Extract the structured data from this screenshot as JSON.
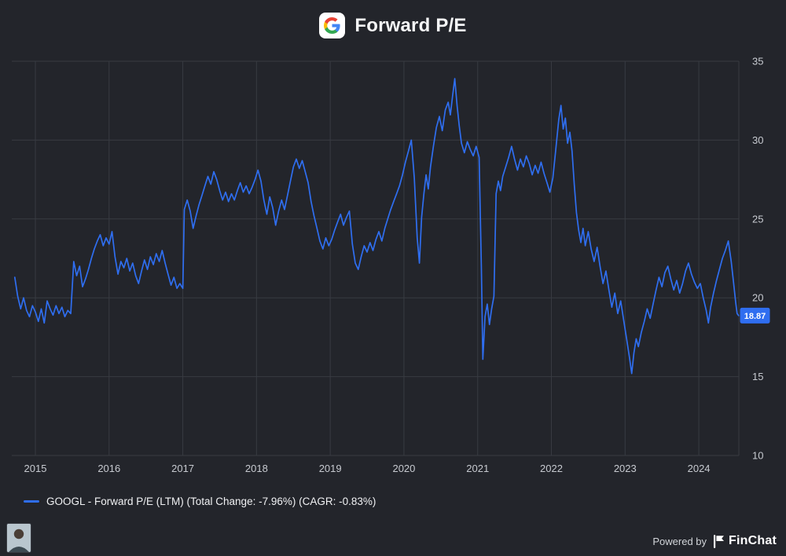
{
  "header": {
    "title": "Forward P/E",
    "logo_icon": "google-logo"
  },
  "legend": {
    "label": "GOOGL - Forward P/E (LTM) (Total Change: -7.96%) (CAGR: -0.83%)"
  },
  "footer": {
    "powered_by": "Powered by",
    "brand": "FinChat",
    "brand_icon": "finchat-flag-icon"
  },
  "chart_data": {
    "type": "line",
    "title": "Forward P/E",
    "ticker": "GOOGL",
    "metric": "Forward P/E (LTM)",
    "total_change": "-7.96%",
    "cagr": "-0.83%",
    "last_value": 18.87,
    "last_value_label": "18.87",
    "xlim": [
      2014.68,
      2024.543
    ],
    "ylim": [
      10,
      35
    ],
    "x_ticks": [
      2015,
      2016,
      2017,
      2018,
      2019,
      2020,
      2021,
      2022,
      2023,
      2024
    ],
    "y_ticks": [
      10,
      15,
      20,
      25,
      30,
      35
    ],
    "grid": true,
    "grid_color": "#383b42",
    "tick_color": "#c7cad0",
    "background_color": "#23252b",
    "legend_position": "bottom-left",
    "y_axis_side": "right",
    "series": [
      {
        "name": "GOOGL - Forward P/E (LTM)",
        "color": "#2f6ef0",
        "points": [
          [
            2014.72,
            21.3
          ],
          [
            2014.76,
            20.1
          ],
          [
            2014.8,
            19.3
          ],
          [
            2014.84,
            20.0
          ],
          [
            2014.88,
            19.2
          ],
          [
            2014.92,
            18.8
          ],
          [
            2014.96,
            19.5
          ],
          [
            2015.0,
            19.1
          ],
          [
            2015.04,
            18.5
          ],
          [
            2015.08,
            19.3
          ],
          [
            2015.12,
            18.4
          ],
          [
            2015.16,
            19.8
          ],
          [
            2015.2,
            19.3
          ],
          [
            2015.24,
            18.9
          ],
          [
            2015.28,
            19.5
          ],
          [
            2015.32,
            19.0
          ],
          [
            2015.36,
            19.4
          ],
          [
            2015.4,
            18.8
          ],
          [
            2015.44,
            19.2
          ],
          [
            2015.48,
            19.0
          ],
          [
            2015.52,
            22.3
          ],
          [
            2015.56,
            21.4
          ],
          [
            2015.6,
            22.0
          ],
          [
            2015.64,
            20.7
          ],
          [
            2015.68,
            21.2
          ],
          [
            2015.72,
            21.8
          ],
          [
            2015.76,
            22.5
          ],
          [
            2015.8,
            23.1
          ],
          [
            2015.84,
            23.6
          ],
          [
            2015.88,
            24.0
          ],
          [
            2015.92,
            23.3
          ],
          [
            2015.96,
            23.8
          ],
          [
            2016.0,
            23.4
          ],
          [
            2016.04,
            24.2
          ],
          [
            2016.08,
            22.6
          ],
          [
            2016.12,
            21.5
          ],
          [
            2016.16,
            22.3
          ],
          [
            2016.2,
            21.9
          ],
          [
            2016.24,
            22.5
          ],
          [
            2016.28,
            21.7
          ],
          [
            2016.32,
            22.2
          ],
          [
            2016.36,
            21.4
          ],
          [
            2016.4,
            20.9
          ],
          [
            2016.44,
            21.7
          ],
          [
            2016.48,
            22.4
          ],
          [
            2016.52,
            21.8
          ],
          [
            2016.56,
            22.6
          ],
          [
            2016.6,
            22.1
          ],
          [
            2016.64,
            22.8
          ],
          [
            2016.68,
            22.3
          ],
          [
            2016.72,
            23.0
          ],
          [
            2016.76,
            22.2
          ],
          [
            2016.8,
            21.5
          ],
          [
            2016.84,
            20.8
          ],
          [
            2016.88,
            21.3
          ],
          [
            2016.92,
            20.6
          ],
          [
            2016.96,
            20.9
          ],
          [
            2017.0,
            20.6
          ],
          [
            2017.02,
            25.6
          ],
          [
            2017.06,
            26.2
          ],
          [
            2017.1,
            25.5
          ],
          [
            2017.14,
            24.4
          ],
          [
            2017.18,
            25.2
          ],
          [
            2017.22,
            25.9
          ],
          [
            2017.26,
            26.5
          ],
          [
            2017.3,
            27.1
          ],
          [
            2017.34,
            27.7
          ],
          [
            2017.38,
            27.2
          ],
          [
            2017.42,
            28.0
          ],
          [
            2017.46,
            27.5
          ],
          [
            2017.5,
            26.8
          ],
          [
            2017.54,
            26.2
          ],
          [
            2017.58,
            26.7
          ],
          [
            2017.62,
            26.1
          ],
          [
            2017.66,
            26.6
          ],
          [
            2017.7,
            26.2
          ],
          [
            2017.74,
            26.8
          ],
          [
            2017.78,
            27.3
          ],
          [
            2017.82,
            26.7
          ],
          [
            2017.86,
            27.1
          ],
          [
            2017.9,
            26.6
          ],
          [
            2017.94,
            27.0
          ],
          [
            2017.98,
            27.5
          ],
          [
            2018.02,
            28.1
          ],
          [
            2018.06,
            27.4
          ],
          [
            2018.1,
            26.2
          ],
          [
            2018.14,
            25.3
          ],
          [
            2018.18,
            26.4
          ],
          [
            2018.22,
            25.7
          ],
          [
            2018.26,
            24.6
          ],
          [
            2018.3,
            25.5
          ],
          [
            2018.34,
            26.2
          ],
          [
            2018.38,
            25.6
          ],
          [
            2018.42,
            26.5
          ],
          [
            2018.46,
            27.4
          ],
          [
            2018.5,
            28.3
          ],
          [
            2018.54,
            28.8
          ],
          [
            2018.58,
            28.2
          ],
          [
            2018.62,
            28.7
          ],
          [
            2018.66,
            28.0
          ],
          [
            2018.7,
            27.3
          ],
          [
            2018.74,
            26.1
          ],
          [
            2018.78,
            25.2
          ],
          [
            2018.82,
            24.4
          ],
          [
            2018.86,
            23.6
          ],
          [
            2018.9,
            23.1
          ],
          [
            2018.94,
            23.8
          ],
          [
            2018.98,
            23.3
          ],
          [
            2019.02,
            23.7
          ],
          [
            2019.06,
            24.3
          ],
          [
            2019.1,
            24.8
          ],
          [
            2019.14,
            25.3
          ],
          [
            2019.18,
            24.6
          ],
          [
            2019.22,
            25.1
          ],
          [
            2019.26,
            25.5
          ],
          [
            2019.3,
            23.4
          ],
          [
            2019.34,
            22.2
          ],
          [
            2019.38,
            21.8
          ],
          [
            2019.42,
            22.6
          ],
          [
            2019.46,
            23.3
          ],
          [
            2019.5,
            22.9
          ],
          [
            2019.54,
            23.5
          ],
          [
            2019.58,
            23.0
          ],
          [
            2019.62,
            23.7
          ],
          [
            2019.66,
            24.2
          ],
          [
            2019.7,
            23.6
          ],
          [
            2019.74,
            24.4
          ],
          [
            2019.78,
            25.0
          ],
          [
            2019.82,
            25.6
          ],
          [
            2019.86,
            26.1
          ],
          [
            2019.9,
            26.6
          ],
          [
            2019.94,
            27.1
          ],
          [
            2019.98,
            27.8
          ],
          [
            2020.02,
            28.6
          ],
          [
            2020.06,
            29.3
          ],
          [
            2020.1,
            30.0
          ],
          [
            2020.14,
            27.6
          ],
          [
            2020.18,
            23.8
          ],
          [
            2020.21,
            22.2
          ],
          [
            2020.24,
            25.1
          ],
          [
            2020.27,
            26.6
          ],
          [
            2020.3,
            27.8
          ],
          [
            2020.33,
            26.9
          ],
          [
            2020.36,
            28.3
          ],
          [
            2020.4,
            29.6
          ],
          [
            2020.44,
            30.8
          ],
          [
            2020.48,
            31.5
          ],
          [
            2020.52,
            30.6
          ],
          [
            2020.56,
            31.9
          ],
          [
            2020.6,
            32.4
          ],
          [
            2020.63,
            31.6
          ],
          [
            2020.66,
            32.8
          ],
          [
            2020.69,
            33.9
          ],
          [
            2020.72,
            32.2
          ],
          [
            2020.75,
            30.9
          ],
          [
            2020.78,
            29.8
          ],
          [
            2020.82,
            29.2
          ],
          [
            2020.86,
            29.9
          ],
          [
            2020.9,
            29.4
          ],
          [
            2020.94,
            29.0
          ],
          [
            2020.98,
            29.6
          ],
          [
            2021.02,
            28.9
          ],
          [
            2021.05,
            22.0
          ],
          [
            2021.07,
            16.1
          ],
          [
            2021.1,
            18.8
          ],
          [
            2021.13,
            19.6
          ],
          [
            2021.16,
            18.3
          ],
          [
            2021.19,
            19.3
          ],
          [
            2021.22,
            20.1
          ],
          [
            2021.25,
            26.6
          ],
          [
            2021.28,
            27.4
          ],
          [
            2021.31,
            26.8
          ],
          [
            2021.34,
            27.7
          ],
          [
            2021.38,
            28.3
          ],
          [
            2021.42,
            28.9
          ],
          [
            2021.46,
            29.6
          ],
          [
            2021.5,
            28.8
          ],
          [
            2021.54,
            28.1
          ],
          [
            2021.58,
            28.8
          ],
          [
            2021.62,
            28.3
          ],
          [
            2021.66,
            29.0
          ],
          [
            2021.7,
            28.5
          ],
          [
            2021.74,
            27.8
          ],
          [
            2021.78,
            28.4
          ],
          [
            2021.82,
            27.9
          ],
          [
            2021.86,
            28.6
          ],
          [
            2021.9,
            27.9
          ],
          [
            2021.94,
            27.3
          ],
          [
            2021.98,
            26.7
          ],
          [
            2022.02,
            27.6
          ],
          [
            2022.06,
            29.4
          ],
          [
            2022.1,
            31.3
          ],
          [
            2022.13,
            32.2
          ],
          [
            2022.16,
            30.7
          ],
          [
            2022.19,
            31.4
          ],
          [
            2022.22,
            29.8
          ],
          [
            2022.25,
            30.5
          ],
          [
            2022.28,
            29.3
          ],
          [
            2022.31,
            27.2
          ],
          [
            2022.34,
            25.4
          ],
          [
            2022.37,
            24.3
          ],
          [
            2022.4,
            23.5
          ],
          [
            2022.43,
            24.4
          ],
          [
            2022.46,
            23.3
          ],
          [
            2022.5,
            24.2
          ],
          [
            2022.54,
            23.1
          ],
          [
            2022.58,
            22.3
          ],
          [
            2022.62,
            23.2
          ],
          [
            2022.66,
            22.0
          ],
          [
            2022.7,
            20.9
          ],
          [
            2022.74,
            21.7
          ],
          [
            2022.78,
            20.5
          ],
          [
            2022.82,
            19.4
          ],
          [
            2022.86,
            20.3
          ],
          [
            2022.9,
            19.0
          ],
          [
            2022.94,
            19.8
          ],
          [
            2022.98,
            18.6
          ],
          [
            2023.02,
            17.4
          ],
          [
            2023.06,
            16.2
          ],
          [
            2023.09,
            15.2
          ],
          [
            2023.12,
            16.5
          ],
          [
            2023.15,
            17.4
          ],
          [
            2023.18,
            16.9
          ],
          [
            2023.22,
            17.8
          ],
          [
            2023.26,
            18.5
          ],
          [
            2023.3,
            19.3
          ],
          [
            2023.34,
            18.7
          ],
          [
            2023.38,
            19.6
          ],
          [
            2023.42,
            20.5
          ],
          [
            2023.46,
            21.3
          ],
          [
            2023.5,
            20.7
          ],
          [
            2023.54,
            21.6
          ],
          [
            2023.58,
            22.0
          ],
          [
            2023.62,
            21.2
          ],
          [
            2023.66,
            20.5
          ],
          [
            2023.7,
            21.1
          ],
          [
            2023.74,
            20.3
          ],
          [
            2023.78,
            20.9
          ],
          [
            2023.82,
            21.7
          ],
          [
            2023.86,
            22.2
          ],
          [
            2023.9,
            21.5
          ],
          [
            2023.94,
            21.0
          ],
          [
            2023.98,
            20.6
          ],
          [
            2024.02,
            20.9
          ],
          [
            2024.06,
            20.0
          ],
          [
            2024.1,
            19.2
          ],
          [
            2024.13,
            18.4
          ],
          [
            2024.16,
            19.4
          ],
          [
            2024.2,
            20.3
          ],
          [
            2024.24,
            21.1
          ],
          [
            2024.28,
            21.8
          ],
          [
            2024.32,
            22.5
          ],
          [
            2024.36,
            23.0
          ],
          [
            2024.4,
            23.6
          ],
          [
            2024.44,
            22.3
          ],
          [
            2024.47,
            21.0
          ],
          [
            2024.5,
            19.7
          ],
          [
            2024.52,
            19.0
          ],
          [
            2024.54,
            18.87
          ]
        ]
      }
    ]
  }
}
